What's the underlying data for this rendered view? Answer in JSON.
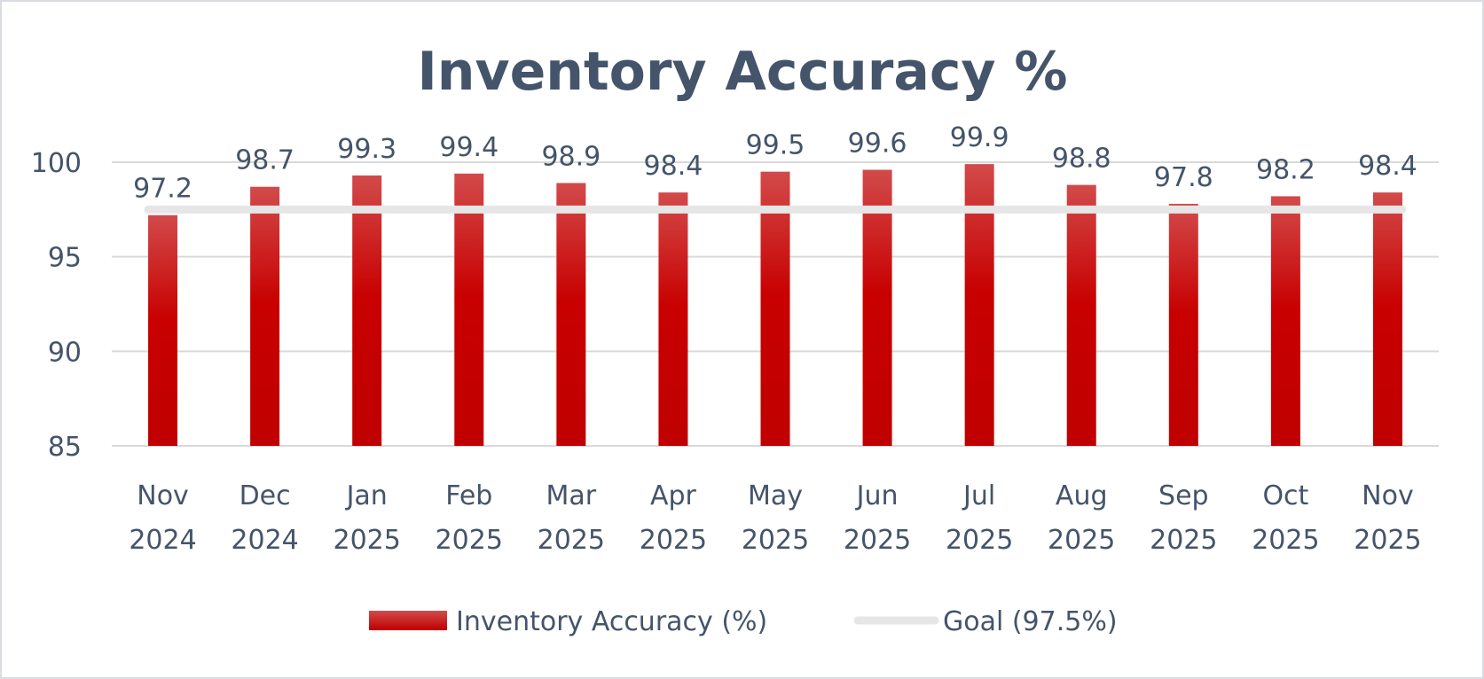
{
  "chart_data": {
    "type": "bar",
    "title": "Inventory Accuracy %",
    "categories": [
      [
        "Nov",
        "2024"
      ],
      [
        "Dec",
        "2024"
      ],
      [
        "Jan",
        "2025"
      ],
      [
        "Feb",
        "2025"
      ],
      [
        "Mar",
        "2025"
      ],
      [
        "Apr",
        "2025"
      ],
      [
        "May",
        "2025"
      ],
      [
        "Jun",
        "2025"
      ],
      [
        "Jul",
        "2025"
      ],
      [
        "Aug",
        "2025"
      ],
      [
        "Sep",
        "2025"
      ],
      [
        "Oct",
        "2025"
      ],
      [
        "Nov",
        "2025"
      ]
    ],
    "series": [
      {
        "name": "Inventory Accuracy (%)",
        "type": "bar",
        "values": [
          97.2,
          98.7,
          99.3,
          99.4,
          98.9,
          98.4,
          99.5,
          99.6,
          99.9,
          98.8,
          97.8,
          98.2,
          98.4
        ],
        "data_labels": [
          "97.2",
          "98.7",
          "99.3",
          "99.4",
          "98.9",
          "98.4",
          "99.5",
          "99.6",
          "99.9",
          "98.8",
          "97.8",
          "98.2",
          "98.4"
        ],
        "color": "#c00000"
      },
      {
        "name": "Goal (97.5%)",
        "type": "line",
        "value": 97.5,
        "color": "#e6e6e6"
      }
    ],
    "ylim": [
      85,
      100
    ],
    "yticks": [
      85,
      90,
      95,
      100
    ],
    "xlabel": "",
    "ylabel": "",
    "grid": true,
    "legend": "bottom"
  }
}
